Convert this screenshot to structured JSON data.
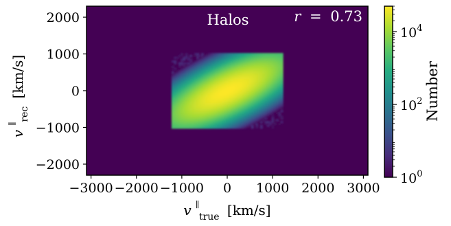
{
  "chart_data": {
    "type": "heatmap",
    "title": "",
    "annotation": "Halos",
    "stat_annotation": {
      "symbol": "r",
      "operator": "=",
      "value": "0.73"
    },
    "xlabel": {
      "symbol": "v",
      "superscript": "∥",
      "subscript": "true",
      "unit": "[km/s]"
    },
    "ylabel": {
      "symbol": "v",
      "superscript": "∥",
      "subscript": "rec",
      "unit": "[km/s]"
    },
    "xlim": [
      -3100,
      3100
    ],
    "ylim": [
      -2300,
      2300
    ],
    "xticks": [
      -3000,
      -2000,
      -1000,
      0,
      1000,
      2000,
      3000
    ],
    "xtick_labels": [
      "−3000",
      "−2000",
      "−1000",
      "0",
      "1000",
      "2000",
      "3000"
    ],
    "yticks": [
      -2000,
      -1000,
      0,
      1000,
      2000
    ],
    "ytick_labels": [
      "−2000",
      "−1000",
      "0",
      "1000",
      "2000"
    ],
    "distribution": {
      "center": [
        0,
        0
      ],
      "sigma_x": 550,
      "sigma_y": 400,
      "correlation": 0.73,
      "peak_count": 50000,
      "support_x": [
        -1200,
        1200
      ],
      "support_y": [
        -1000,
        1000
      ]
    },
    "colorbar": {
      "label": "Number",
      "scale": "log",
      "min": 1,
      "max": 50000,
      "ticks": [
        {
          "value": 1,
          "base": "10",
          "exp": "0"
        },
        {
          "value": 100,
          "base": "10",
          "exp": "2"
        },
        {
          "value": 10000,
          "base": "10",
          "exp": "4"
        }
      ]
    },
    "colormap": "viridis",
    "background_color": "#440154",
    "grid": false
  }
}
